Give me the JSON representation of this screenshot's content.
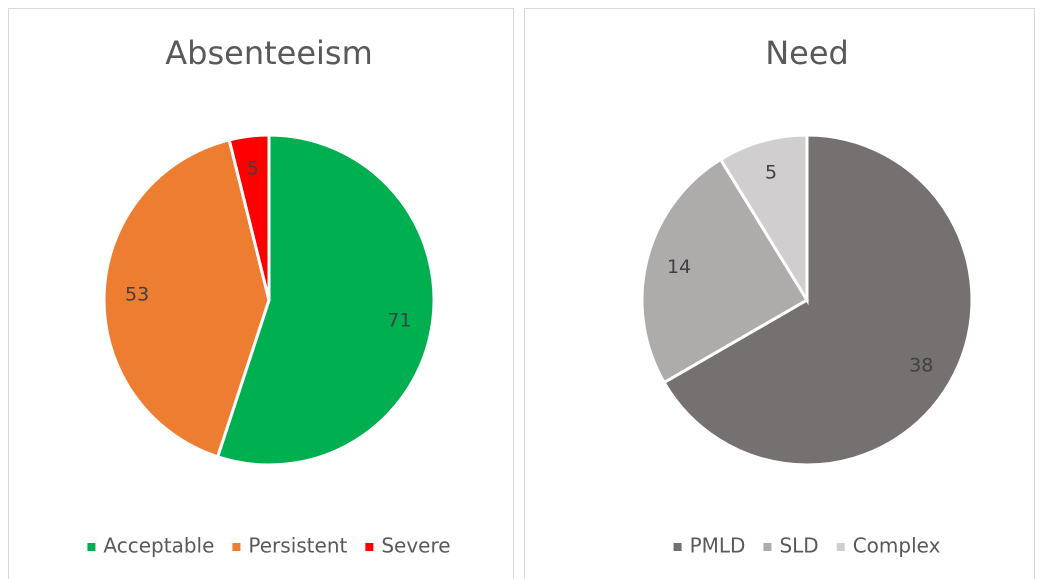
{
  "chart_data": [
    {
      "type": "pie",
      "title": "Absenteeism",
      "categories": [
        "Acceptable",
        "Persistent",
        "Severe"
      ],
      "values": [
        71,
        53,
        5
      ],
      "colors": [
        "#00b050",
        "#ed7d31",
        "#ff0000"
      ]
    },
    {
      "type": "pie",
      "title": "Need",
      "categories": [
        "PMLD",
        "SLD",
        "Complex"
      ],
      "values": [
        38,
        14,
        5
      ],
      "colors": [
        "#767171",
        "#aeabab",
        "#d0cece"
      ]
    }
  ]
}
